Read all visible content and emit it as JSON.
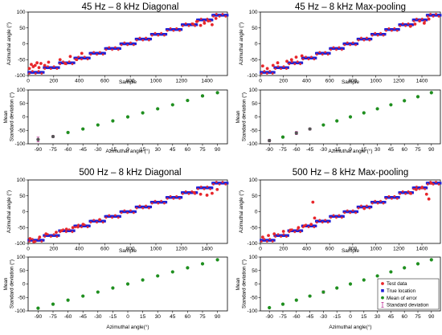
{
  "colors": {
    "test_data": "#e8262b",
    "true_location": "#1f1fd6",
    "mean_of_error": "#1f8f1f",
    "std_dev": "#c0399b"
  },
  "legend": {
    "items": [
      {
        "label": "Test data",
        "marker": "circle",
        "color": "#e8262b"
      },
      {
        "label": "True location",
        "marker": "square",
        "color": "#1f1fd6"
      },
      {
        "label": "Mean of error",
        "marker": "circle",
        "color": "#1f8f1f"
      },
      {
        "label": "Standard deviation",
        "marker": "errorbar",
        "color": "#c0399b"
      }
    ]
  },
  "chart_data": [
    {
      "panel": "top-left",
      "title": "45 Hz – 8 kHz Diagonal",
      "top": {
        "type": "scatter",
        "xlabel": "Sample",
        "ylabel": "Azimuthal angle (°)",
        "xlim": [
          0,
          1560
        ],
        "ylim": [
          -100,
          100
        ],
        "xticks": [
          0,
          200,
          400,
          600,
          800,
          1000,
          1200,
          1400
        ],
        "yticks": [
          -100,
          -50,
          0,
          50,
          100
        ],
        "true_location": {
          "angles": [
            -90,
            -75,
            -60,
            -45,
            -30,
            -15,
            0,
            15,
            30,
            45,
            60,
            75,
            90
          ],
          "samples_per_angle": 120
        },
        "test_data_outliers": [
          [
            10,
            -78
          ],
          [
            25,
            -65
          ],
          [
            40,
            -72
          ],
          [
            55,
            -68
          ],
          [
            70,
            -60
          ],
          [
            85,
            -75
          ],
          [
            100,
            -62
          ],
          [
            130,
            -68
          ],
          [
            160,
            -58
          ],
          [
            250,
            -50
          ],
          [
            290,
            -62
          ],
          [
            330,
            -40
          ],
          [
            380,
            -50
          ],
          [
            420,
            -30
          ],
          [
            1290,
            62
          ],
          [
            1320,
            70
          ],
          [
            1350,
            58
          ],
          [
            1380,
            65
          ],
          [
            1410,
            72
          ],
          [
            1440,
            60
          ],
          [
            1470,
            80
          ]
        ]
      },
      "bottom": {
        "type": "scatter",
        "xlabel": "Azimuthal angle (°)",
        "ylabel": "Mean\nStandard deviation (°)",
        "xlim": [
          -100,
          100
        ],
        "ylim": [
          -100,
          100
        ],
        "xticks": [
          -90,
          -75,
          -60,
          -45,
          -30,
          -15,
          0,
          15,
          30,
          45,
          60,
          75,
          90
        ],
        "yticks": [
          -100,
          -50,
          0,
          50,
          100
        ],
        "x": [
          -90,
          -75,
          -60,
          -45,
          -30,
          -15,
          0,
          15,
          30,
          45,
          60,
          75,
          90
        ],
        "mean": [
          -84,
          -73,
          -58,
          -45,
          -30,
          -15,
          0,
          15,
          30,
          45,
          61,
          78,
          90
        ],
        "std": [
          9,
          4,
          3,
          3,
          1,
          1,
          1,
          1,
          1,
          1,
          1,
          3,
          2
        ]
      }
    },
    {
      "panel": "top-right",
      "title": "45 Hz – 8 kHz Max-pooling",
      "top": {
        "type": "scatter",
        "xlabel": "Sample",
        "ylabel": "Azimuthal angle (°)",
        "xlim": [
          0,
          1560
        ],
        "ylim": [
          -100,
          100
        ],
        "xticks": [
          0,
          200,
          400,
          600,
          800,
          1000,
          1200,
          1400
        ],
        "yticks": [
          -100,
          -50,
          0,
          50,
          100
        ],
        "true_location": {
          "angles": [
            -90,
            -75,
            -60,
            -45,
            -30,
            -15,
            0,
            15,
            30,
            45,
            60,
            75,
            90
          ],
          "samples_per_angle": 120
        },
        "test_data_outliers": [
          [
            20,
            -70
          ],
          [
            60,
            -78
          ],
          [
            110,
            -68
          ],
          [
            150,
            -60
          ],
          [
            230,
            -55
          ],
          [
            270,
            -50
          ],
          [
            310,
            -42
          ],
          [
            360,
            -38
          ],
          [
            1300,
            55
          ],
          [
            1340,
            62
          ],
          [
            1380,
            72
          ],
          [
            1420,
            65
          ],
          [
            1460,
            78
          ]
        ]
      },
      "bottom": {
        "type": "scatter",
        "xlabel": "Azimuthal angle (°)",
        "ylabel": "Mean\nStandard deviation (°)",
        "xlim": [
          -100,
          100
        ],
        "ylim": [
          -100,
          100
        ],
        "xticks": [
          -90,
          -75,
          -60,
          -45,
          -30,
          -15,
          0,
          15,
          30,
          45,
          60,
          75,
          90
        ],
        "yticks": [
          -100,
          -50,
          0,
          50,
          100
        ],
        "x": [
          -90,
          -75,
          -60,
          -45,
          -30,
          -15,
          0,
          15,
          30,
          45,
          60,
          75,
          90
        ],
        "mean": [
          -88,
          -75,
          -60,
          -45,
          -30,
          -15,
          0,
          15,
          30,
          45,
          60,
          75,
          90
        ],
        "std": [
          5,
          3,
          6,
          4,
          1,
          1,
          1,
          1,
          1,
          1,
          1,
          2,
          1
        ]
      }
    },
    {
      "panel": "bottom-left",
      "title": "500 Hz – 8 kHz Diagonal",
      "top": {
        "type": "scatter",
        "xlabel": "Sample",
        "ylabel": "Azimuthal angle (°)",
        "xlim": [
          0,
          1560
        ],
        "ylim": [
          -100,
          100
        ],
        "xticks": [
          0,
          200,
          400,
          600,
          800,
          1000,
          1200,
          1400
        ],
        "yticks": [
          -100,
          -50,
          0,
          50,
          100
        ],
        "true_location": {
          "angles": [
            -90,
            -75,
            -60,
            -45,
            -30,
            -15,
            0,
            15,
            30,
            45,
            60,
            75,
            90
          ],
          "samples_per_angle": 120
        },
        "test_data_outliers": [
          [
            15,
            -85
          ],
          [
            45,
            -95
          ],
          [
            90,
            -80
          ],
          [
            140,
            -70
          ],
          [
            220,
            -65
          ],
          [
            260,
            -60
          ],
          [
            300,
            -55
          ],
          [
            350,
            -50
          ],
          [
            390,
            -48
          ],
          [
            430,
            -40
          ],
          [
            560,
            -25
          ],
          [
            1300,
            60
          ],
          [
            1350,
            55
          ],
          [
            1400,
            52
          ],
          [
            1440,
            58
          ],
          [
            1480,
            70
          ]
        ]
      },
      "bottom": {
        "type": "scatter",
        "xlabel": "Azimuthal angle(°)",
        "ylabel": "Mean\nStandard deviation (°)",
        "xlim": [
          -100,
          100
        ],
        "ylim": [
          -100,
          100
        ],
        "xticks": [
          -90,
          -75,
          -60,
          -45,
          -30,
          -15,
          0,
          15,
          30,
          45,
          60,
          75,
          90
        ],
        "yticks": [
          -100,
          -50,
          0,
          50,
          100
        ],
        "x": [
          -90,
          -75,
          -60,
          -45,
          -30,
          -15,
          0,
          15,
          30,
          45,
          60,
          75,
          90
        ],
        "mean": [
          -90,
          -75,
          -60,
          -45,
          -30,
          -15,
          0,
          15,
          30,
          45,
          60,
          75,
          90
        ],
        "std": [
          1,
          1,
          1,
          1,
          1,
          1,
          1,
          1,
          1,
          1,
          1,
          1,
          1
        ]
      }
    },
    {
      "panel": "bottom-right",
      "title": "500 Hz – 8 kHz Max-pooling",
      "top": {
        "type": "scatter",
        "xlabel": "Sample",
        "ylabel": "Azimuthal angle (°)",
        "xlim": [
          0,
          1560
        ],
        "ylim": [
          -100,
          100
        ],
        "xticks": [
          0,
          200,
          400,
          600,
          800,
          1000,
          1200,
          1400
        ],
        "yticks": [
          -100,
          -50,
          0,
          50,
          100
        ],
        "true_location": {
          "angles": [
            -90,
            -75,
            -60,
            -45,
            -30,
            -15,
            0,
            15,
            30,
            45,
            60,
            75,
            90
          ],
          "samples_per_angle": 120
        },
        "test_data_outliers": [
          [
            20,
            -80
          ],
          [
            70,
            -75
          ],
          [
            120,
            -70
          ],
          [
            200,
            -62
          ],
          [
            260,
            -58
          ],
          [
            330,
            -50
          ],
          [
            380,
            -45
          ],
          [
            440,
            -40
          ],
          [
            455,
            30
          ],
          [
            470,
            -20
          ],
          [
            900,
            10
          ],
          [
            1300,
            58
          ],
          [
            1350,
            70
          ],
          [
            1400,
            75
          ],
          [
            1440,
            55
          ],
          [
            1460,
            40
          ],
          [
            1480,
            90
          ]
        ]
      },
      "bottom": {
        "type": "scatter",
        "xlabel": "Azimuthal angle(°)",
        "ylabel": "Mean\nStandard deviation (°)",
        "xlim": [
          -100,
          100
        ],
        "ylim": [
          -100,
          100
        ],
        "xticks": [
          -90,
          -75,
          -60,
          -45,
          -30,
          -15,
          0,
          15,
          30,
          45,
          60,
          75,
          90
        ],
        "yticks": [
          -100,
          -50,
          0,
          50,
          100
        ],
        "x": [
          -90,
          -75,
          -60,
          -45,
          -30,
          -15,
          0,
          15,
          30,
          45,
          60,
          75,
          90
        ],
        "mean": [
          -88,
          -75,
          -60,
          -45,
          -30,
          -15,
          0,
          15,
          30,
          45,
          60,
          75,
          90
        ],
        "std": [
          1,
          1,
          1,
          3,
          5,
          1,
          1,
          1,
          1,
          1,
          1,
          1,
          1
        ]
      },
      "legend": "bottom-right"
    }
  ]
}
